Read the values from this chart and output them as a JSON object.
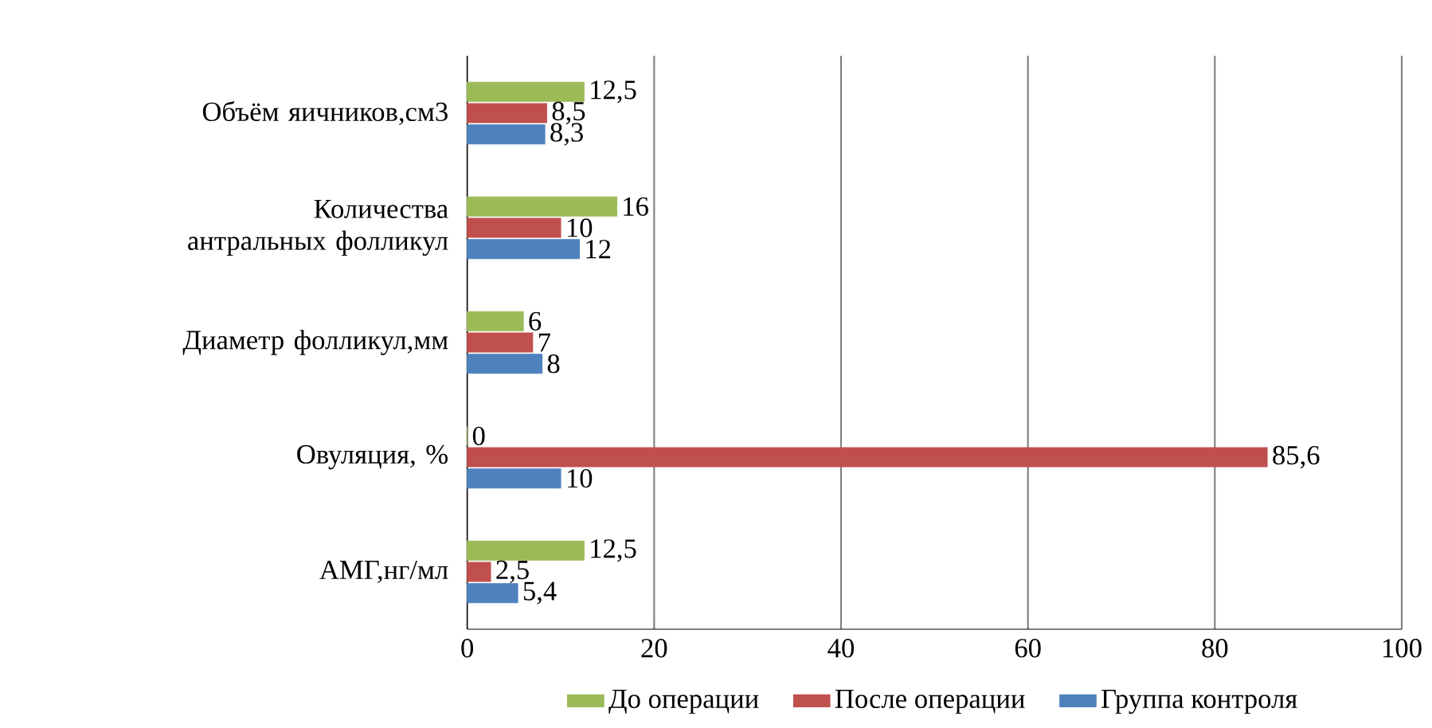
{
  "chart_data": {
    "type": "bar",
    "orientation": "horizontal",
    "categories": [
      "Объём яичников,см3",
      "Количества антральных фолликул",
      "Диаметр фолликул,мм",
      "Овуляция, %",
      "АМГ,нг/мл"
    ],
    "series": [
      {
        "name": "До операции",
        "color": "#9bbb59",
        "values": [
          12.5,
          16,
          6,
          0,
          12.5
        ],
        "value_labels": [
          "12,5",
          "16",
          "6",
          "0",
          "12,5"
        ]
      },
      {
        "name": "После операции",
        "color": "#c0504d",
        "values": [
          8.5,
          10,
          7,
          85.6,
          2.5
        ],
        "value_labels": [
          "8,5",
          "10",
          "7",
          "85,6",
          "2,5"
        ]
      },
      {
        "name": "Группа контроля",
        "color": "#4f81bd",
        "values": [
          8.3,
          12,
          8,
          10,
          5.4
        ],
        "value_labels": [
          "8,3",
          "12",
          "8",
          "10",
          "5,4"
        ]
      }
    ],
    "xlim": [
      0,
      100
    ],
    "xticks": [
      0,
      20,
      40,
      60,
      80,
      100
    ],
    "grid": "x",
    "legend": "bottom"
  }
}
